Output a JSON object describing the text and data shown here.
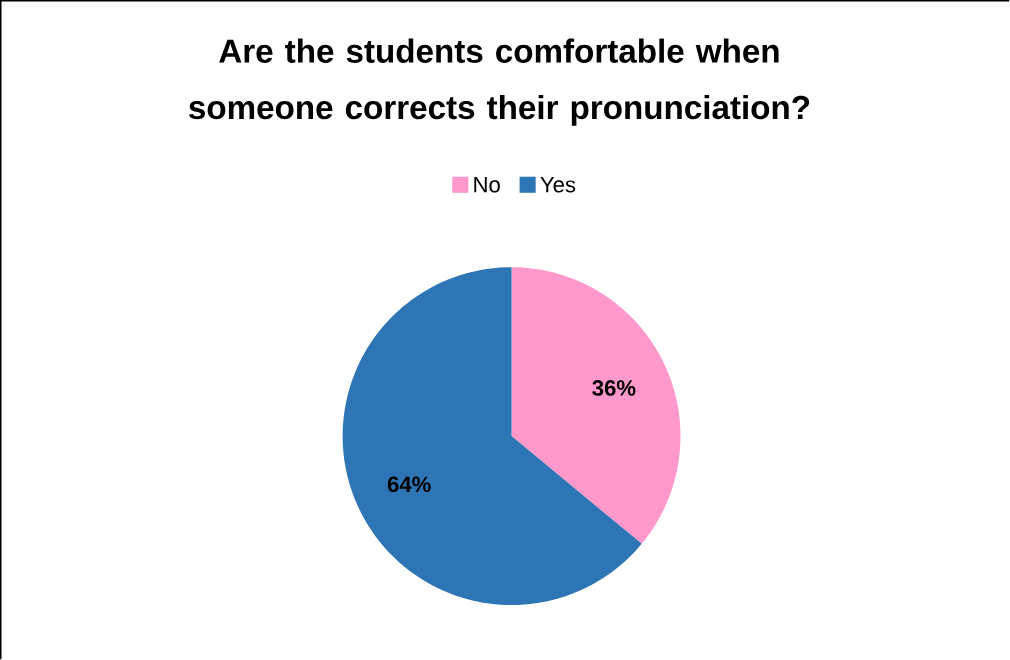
{
  "chart_data": {
    "type": "pie",
    "title": "Are the students comfortable when someone corrects their pronunciation?",
    "categories": [
      "No",
      "Yes"
    ],
    "values": [
      36,
      64
    ],
    "colors": [
      "#ff99cc",
      "#2e75b6"
    ],
    "value_labels": [
      "36%",
      "64%"
    ],
    "legend": "top"
  }
}
